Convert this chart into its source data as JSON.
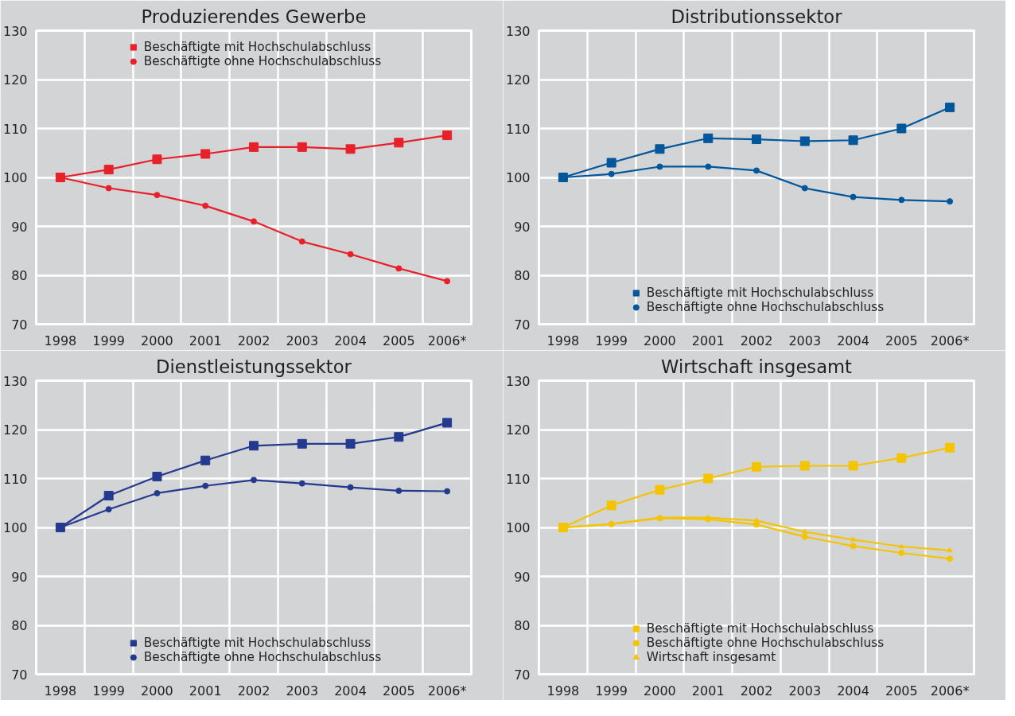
{
  "chart_data": [
    {
      "type": "line",
      "title": "Produzierendes Gewerbe",
      "categories": [
        "1998",
        "1999",
        "2000",
        "2001",
        "2002",
        "2003",
        "2004",
        "2005",
        "2006*"
      ],
      "ylim": [
        70,
        130
      ],
      "yticks": [
        70,
        80,
        90,
        100,
        110,
        120,
        130
      ],
      "grid": true,
      "legend": "top",
      "series": [
        {
          "name": "Beschäftigte mit Hochschulabschluss",
          "color": "#e8202a",
          "marker": "square",
          "values": [
            100,
            101.6,
            103.7,
            104.8,
            106.2,
            106.2,
            105.8,
            107.1,
            108.6
          ]
        },
        {
          "name": "Beschäftigte ohne Hochschulabschluss",
          "color": "#e8202a",
          "marker": "circle",
          "values": [
            100,
            97.8,
            96.4,
            94.2,
            91.0,
            86.9,
            84.3,
            81.4,
            78.8
          ]
        }
      ]
    },
    {
      "type": "line",
      "title": "Distributionssektor",
      "categories": [
        "1998",
        "1999",
        "2000",
        "2001",
        "2002",
        "2003",
        "2004",
        "2005",
        "2006*"
      ],
      "ylim": [
        70,
        130
      ],
      "yticks": [
        70,
        80,
        90,
        100,
        110,
        120,
        130
      ],
      "grid": true,
      "legend": "bottom",
      "series": [
        {
          "name": "Beschäftigte mit Hochschulabschluss",
          "color": "#00579c",
          "marker": "square",
          "values": [
            100,
            103.0,
            105.8,
            108.0,
            107.8,
            107.4,
            107.6,
            110.0,
            114.3
          ]
        },
        {
          "name": "Beschäftigte ohne Hochschulabschluss",
          "color": "#00579c",
          "marker": "circle",
          "values": [
            100,
            100.7,
            102.2,
            102.2,
            101.4,
            97.8,
            96.0,
            95.4,
            95.1
          ]
        }
      ]
    },
    {
      "type": "line",
      "title": "Dienstleistungssektor",
      "categories": [
        "1998",
        "1999",
        "2000",
        "2001",
        "2002",
        "2003",
        "2004",
        "2005",
        "2006*"
      ],
      "ylim": [
        70,
        130
      ],
      "yticks": [
        70,
        80,
        90,
        100,
        110,
        120,
        130
      ],
      "grid": true,
      "legend": "bottom",
      "series": [
        {
          "name": "Beschäftigte mit Hochschulabschluss",
          "color": "#243a8f",
          "marker": "square",
          "values": [
            100,
            106.5,
            110.4,
            113.7,
            116.7,
            117.1,
            117.1,
            118.5,
            121.4
          ]
        },
        {
          "name": "Beschäftigte ohne Hochschulabschluss",
          "color": "#243a8f",
          "marker": "circle",
          "values": [
            100,
            103.7,
            107.0,
            108.5,
            109.7,
            109.0,
            108.2,
            107.5,
            107.4
          ]
        }
      ]
    },
    {
      "type": "line",
      "title": "Wirtschaft insgesamt",
      "categories": [
        "1998",
        "1999",
        "2000",
        "2001",
        "2002",
        "2003",
        "2004",
        "2005",
        "2006*"
      ],
      "ylim": [
        70,
        130
      ],
      "yticks": [
        70,
        80,
        90,
        100,
        110,
        120,
        130
      ],
      "grid": true,
      "legend": "bottom",
      "series": [
        {
          "name": "Beschäftigte mit Hochschulabschluss",
          "color": "#f5c400",
          "marker": "square",
          "values": [
            100,
            104.5,
            107.7,
            110.0,
            112.4,
            112.6,
            112.6,
            114.2,
            116.3
          ]
        },
        {
          "name": "Beschäftigte ohne Hochschulabschluss",
          "color": "#f5c400",
          "marker": "circle",
          "values": [
            100,
            100.7,
            101.9,
            101.7,
            100.6,
            98.1,
            96.2,
            94.8,
            93.6
          ]
        },
        {
          "name": "Wirtschaft insgesamt",
          "color": "#f5c400",
          "marker": "triangle",
          "values": [
            100,
            100.7,
            102.0,
            102.0,
            101.4,
            99.1,
            97.5,
            96.1,
            95.3
          ]
        }
      ]
    }
  ]
}
